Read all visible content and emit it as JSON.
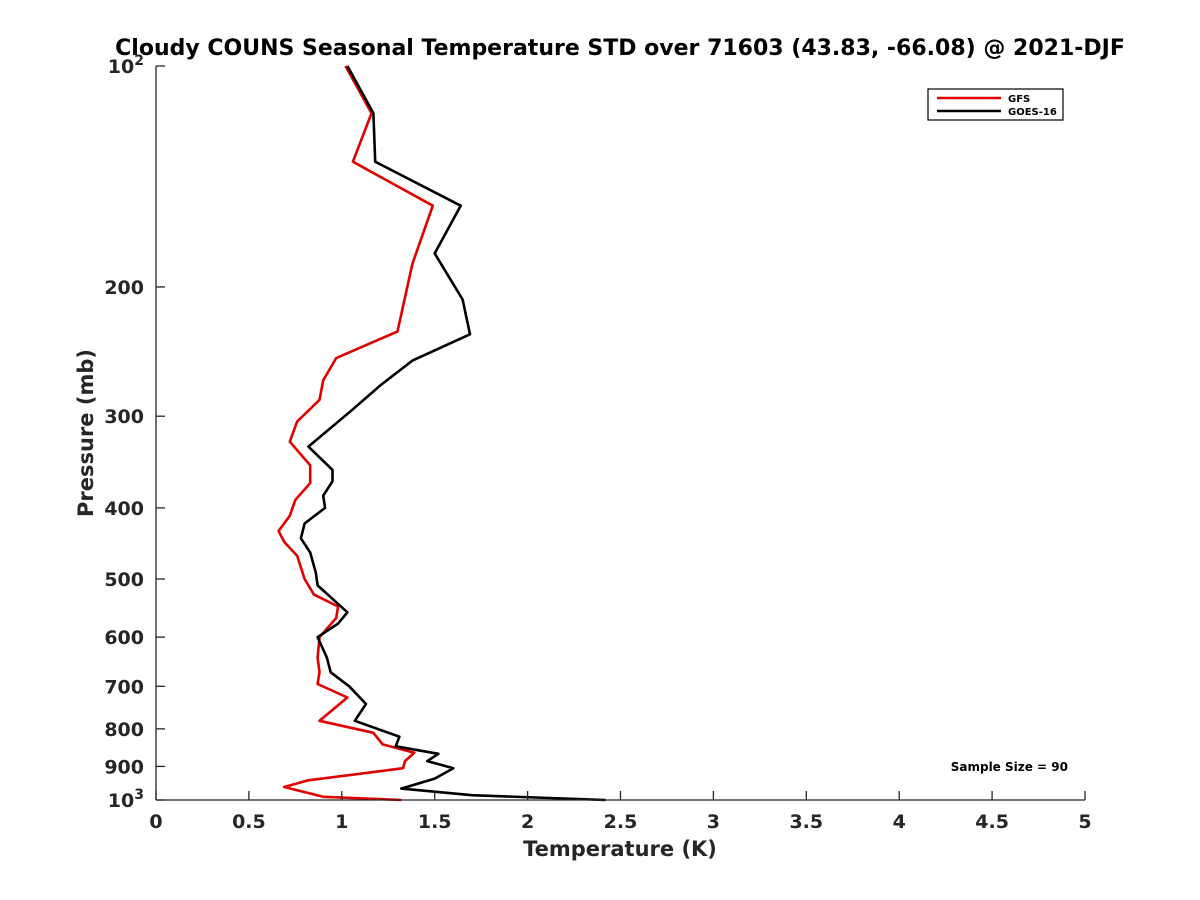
{
  "chart_data": {
    "type": "line",
    "title": "Cloudy COUNS Seasonal Temperature STD over 71603 (43.83, -66.08) @ 2021-DJF",
    "xlabel": "Temperature (K)",
    "ylabel": "Pressure (mb)",
    "xlim": [
      0,
      5
    ],
    "ylim": [
      100,
      1000
    ],
    "yscale": "log",
    "y_reversed": true,
    "grid": false,
    "legend_position": "top-right",
    "xticks": [
      {
        "value": 0,
        "label": "0"
      },
      {
        "value": 0.5,
        "label": "0.5"
      },
      {
        "value": 1,
        "label": "1"
      },
      {
        "value": 1.5,
        "label": "1.5"
      },
      {
        "value": 2,
        "label": "2"
      },
      {
        "value": 2.5,
        "label": "2.5"
      },
      {
        "value": 3,
        "label": "3"
      },
      {
        "value": 3.5,
        "label": "3.5"
      },
      {
        "value": 4,
        "label": "4"
      },
      {
        "value": 4.5,
        "label": "4.5"
      },
      {
        "value": 5,
        "label": "5"
      }
    ],
    "yticks": [
      {
        "value": 100,
        "base": "10",
        "exp": "2"
      },
      {
        "value": 200,
        "label": "200"
      },
      {
        "value": 300,
        "label": "300"
      },
      {
        "value": 400,
        "label": "400"
      },
      {
        "value": 500,
        "label": "500"
      },
      {
        "value": 600,
        "label": "600"
      },
      {
        "value": 700,
        "label": "700"
      },
      {
        "value": 800,
        "label": "800"
      },
      {
        "value": 900,
        "label": "900"
      },
      {
        "value": 1000,
        "base": "10",
        "exp": "3"
      }
    ],
    "series": [
      {
        "name": "GFS",
        "color": "#e00000",
        "points": [
          [
            1.02,
            100
          ],
          [
            1.16,
            116
          ],
          [
            1.06,
            135
          ],
          [
            1.49,
            155
          ],
          [
            1.38,
            186
          ],
          [
            1.3,
            230
          ],
          [
            0.97,
            250
          ],
          [
            0.9,
            268
          ],
          [
            0.88,
            285
          ],
          [
            0.76,
            305
          ],
          [
            0.72,
            325
          ],
          [
            0.83,
            350
          ],
          [
            0.83,
            370
          ],
          [
            0.75,
            390
          ],
          [
            0.72,
            410
          ],
          [
            0.66,
            430
          ],
          [
            0.69,
            445
          ],
          [
            0.76,
            465
          ],
          [
            0.8,
            500
          ],
          [
            0.85,
            525
          ],
          [
            0.98,
            545
          ],
          [
            0.97,
            565
          ],
          [
            0.88,
            600
          ],
          [
            0.87,
            640
          ],
          [
            0.88,
            670
          ],
          [
            0.87,
            695
          ],
          [
            1.03,
            725
          ],
          [
            0.88,
            780
          ],
          [
            1.17,
            810
          ],
          [
            1.22,
            840
          ],
          [
            1.39,
            862
          ],
          [
            1.34,
            885
          ],
          [
            1.33,
            905
          ],
          [
            0.82,
            940
          ],
          [
            0.69,
            960
          ],
          [
            0.9,
            990
          ],
          [
            1.32,
            1000
          ]
        ]
      },
      {
        "name": "GOES-16",
        "color": "#000000",
        "points": [
          [
            1.03,
            100
          ],
          [
            1.17,
            116
          ],
          [
            1.18,
            135
          ],
          [
            1.64,
            155
          ],
          [
            1.5,
            180
          ],
          [
            1.65,
            208
          ],
          [
            1.69,
            232
          ],
          [
            1.38,
            252
          ],
          [
            1.21,
            272
          ],
          [
            1.05,
            295
          ],
          [
            0.82,
            330
          ],
          [
            0.95,
            355
          ],
          [
            0.95,
            368
          ],
          [
            0.9,
            385
          ],
          [
            0.91,
            400
          ],
          [
            0.8,
            420
          ],
          [
            0.78,
            440
          ],
          [
            0.83,
            460
          ],
          [
            0.86,
            490
          ],
          [
            0.87,
            510
          ],
          [
            1.03,
            555
          ],
          [
            0.98,
            575
          ],
          [
            0.87,
            600
          ],
          [
            0.92,
            640
          ],
          [
            0.94,
            670
          ],
          [
            1.04,
            700
          ],
          [
            1.13,
            740
          ],
          [
            1.07,
            780
          ],
          [
            1.31,
            820
          ],
          [
            1.29,
            845
          ],
          [
            1.52,
            865
          ],
          [
            1.46,
            885
          ],
          [
            1.6,
            905
          ],
          [
            1.5,
            935
          ],
          [
            1.32,
            965
          ],
          [
            1.7,
            985
          ],
          [
            2.42,
            1000
          ]
        ]
      }
    ],
    "annotations": [
      {
        "text": "Sample Size = 90"
      }
    ]
  }
}
